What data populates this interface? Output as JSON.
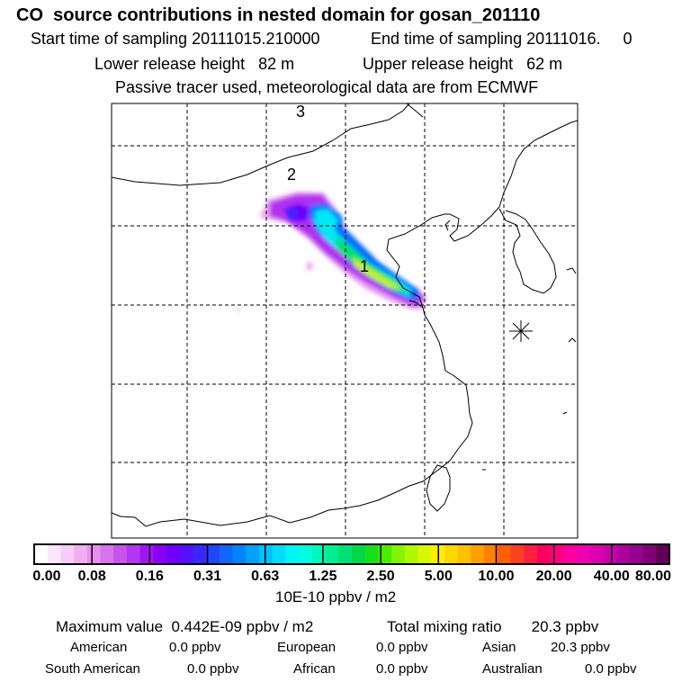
{
  "header": {
    "title": "CO  source contributions in nested domain for gosan_201110",
    "start_label": "Start time of sampling 20111015.210000",
    "end_label": "End time of sampling 20111016.     0",
    "lower_label": "Lower release height   82 m",
    "upper_label": "Upper release height   62 m",
    "tracer_label": "Passive tracer used, meteorological data are from ECMWF"
  },
  "map": {
    "trajectory_markers": [
      "1",
      "2",
      "3"
    ]
  },
  "chart_data": {
    "type": "heatmap",
    "title": "CO  source contributions in nested domain for gosan_201110",
    "colorbar": {
      "tick_labels": [
        "0.00",
        "0.08",
        "0.16",
        "0.31",
        "0.63",
        "1.25",
        "2.50",
        "5.00",
        "10.00",
        "20.00",
        "40.00",
        "80.00"
      ],
      "unit": "10E-10 ppbv / m2",
      "colors": [
        "#ffffff",
        "#fbe6fb",
        "#f6cdf6",
        "#f0b0f0",
        "#e690ee",
        "#d873ec",
        "#c852ec",
        "#b436ee",
        "#a016f2",
        "#8a00f2",
        "#7000ff",
        "#5510ff",
        "#3a28ff",
        "#2046ff",
        "#1066ff",
        "#0084ff",
        "#00a2ff",
        "#00c0ff",
        "#00dcff",
        "#00f4f4",
        "#00ffe0",
        "#00f7b8",
        "#00ee92",
        "#00e070",
        "#00d84a",
        "#18e018",
        "#46ee00",
        "#80f400",
        "#b0f800",
        "#d8f800",
        "#ffee00",
        "#ffd800",
        "#ffc000",
        "#ffa000",
        "#ff8000",
        "#ff6000",
        "#ff4020",
        "#ff2040",
        "#ff0060",
        "#ff0080",
        "#ff00a0",
        "#f000b0",
        "#dd00b0",
        "#c800a8",
        "#b000a0",
        "#980090",
        "#800078",
        "#600058"
      ]
    },
    "series": [
      {
        "name": "Maximum value",
        "value": "0.442E-09",
        "unit": "ppbv / m2"
      },
      {
        "name": "Total mixing ratio",
        "value": 20.3,
        "unit": "ppbv"
      }
    ]
  },
  "summary": {
    "max_label": "Maximum value  0.442E-09 ppbv / m2",
    "total_label": "Total mixing ratio       20.3 ppbv",
    "regions": [
      {
        "name": "American",
        "value": "0.0 ppbv"
      },
      {
        "name": "European",
        "value": "0.0 ppbv"
      },
      {
        "name": "Asian",
        "value": "20.3 ppbv"
      },
      {
        "name": "South American",
        "value": "0.0 ppbv"
      },
      {
        "name": "African",
        "value": "0.0 ppbv"
      },
      {
        "name": "Australian",
        "value": "0.0 ppbv"
      }
    ]
  }
}
